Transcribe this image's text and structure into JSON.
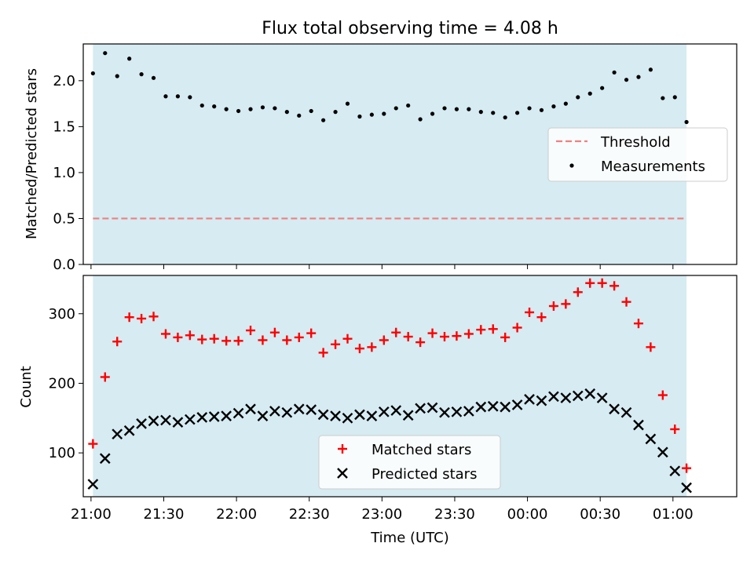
{
  "chart_data": [
    {
      "type": "scatter",
      "title": "Flux total observing time = 4.08 h",
      "xlabel": "",
      "ylabel": "Matched/Predicted stars",
      "xlim": [
        -3.2,
        266.3
      ],
      "ylim": [
        0.0,
        2.4
      ],
      "yticks": [
        0.0,
        0.5,
        1.0,
        1.5,
        2.0
      ],
      "ytick_labels": [
        "0.0",
        "0.5",
        "1.0",
        "1.5",
        "2.0"
      ],
      "shaded_span": [
        0.8,
        245.6
      ],
      "shade_color": "#add8e6",
      "threshold": 0.5,
      "legend_position": "center-right",
      "series": [
        {
          "name": "Threshold",
          "kind": "dashed-line",
          "color": "#f08080"
        },
        {
          "name": "Measurements",
          "kind": "dots",
          "color": "#000000",
          "x": [
            0.8,
            5.8,
            10.8,
            15.8,
            20.8,
            25.8,
            30.8,
            35.8,
            40.8,
            45.8,
            50.8,
            55.8,
            60.8,
            65.8,
            70.8,
            75.8,
            80.8,
            85.8,
            90.8,
            95.8,
            100.8,
            105.8,
            110.8,
            115.8,
            120.8,
            125.8,
            130.8,
            135.8,
            140.8,
            145.8,
            150.8,
            155.8,
            160.8,
            165.8,
            170.8,
            175.8,
            180.8,
            185.8,
            190.8,
            195.8,
            200.8,
            205.8,
            210.8,
            215.8,
            220.8,
            225.8,
            230.8,
            235.8,
            240.8,
            245.6
          ],
          "y": [
            2.08,
            2.3,
            2.05,
            2.24,
            2.07,
            2.03,
            1.83,
            1.83,
            1.82,
            1.73,
            1.72,
            1.69,
            1.67,
            1.69,
            1.71,
            1.7,
            1.66,
            1.62,
            1.67,
            1.57,
            1.66,
            1.75,
            1.61,
            1.63,
            1.64,
            1.7,
            1.73,
            1.58,
            1.64,
            1.7,
            1.69,
            1.69,
            1.66,
            1.65,
            1.6,
            1.65,
            1.7,
            1.68,
            1.72,
            1.75,
            1.82,
            1.86,
            1.92,
            2.09,
            2.01,
            2.04,
            2.12,
            1.81,
            1.82,
            1.55
          ]
        }
      ]
    },
    {
      "type": "scatter",
      "title": "",
      "xlabel": "Time (UTC)",
      "ylabel": "Count",
      "xlim": [
        -3.2,
        266.3
      ],
      "ylim": [
        37,
        355
      ],
      "yticks": [
        100,
        200,
        300
      ],
      "ytick_labels": [
        "100",
        "200",
        "300"
      ],
      "xticks": [
        0,
        30,
        60,
        90,
        120,
        150,
        180,
        210,
        240
      ],
      "xtick_labels": [
        "21:00",
        "21:30",
        "22:00",
        "22:30",
        "23:00",
        "23:30",
        "00:00",
        "00:30",
        "01:00"
      ],
      "shaded_span": [
        0.8,
        245.6
      ],
      "shade_color": "#add8e6",
      "legend_position": "bottom-center",
      "series": [
        {
          "name": "Matched stars",
          "kind": "plus",
          "color": "#ff0000",
          "x": [
            0.8,
            5.8,
            10.8,
            15.8,
            20.8,
            25.8,
            30.8,
            35.8,
            40.8,
            45.8,
            50.8,
            55.8,
            60.8,
            65.8,
            70.8,
            75.8,
            80.8,
            85.8,
            90.8,
            95.8,
            100.8,
            105.8,
            110.8,
            115.8,
            120.8,
            125.8,
            130.8,
            135.8,
            140.8,
            145.8,
            150.8,
            155.8,
            160.8,
            165.8,
            170.8,
            175.8,
            180.8,
            185.8,
            190.8,
            195.8,
            200.8,
            205.8,
            210.8,
            215.8,
            220.8,
            225.8,
            230.8,
            235.8,
            240.8,
            245.6
          ],
          "y": [
            113,
            209,
            260,
            295,
            293,
            296,
            271,
            266,
            269,
            263,
            264,
            261,
            261,
            276,
            262,
            273,
            262,
            266,
            272,
            244,
            256,
            264,
            250,
            252,
            262,
            273,
            267,
            259,
            272,
            267,
            268,
            271,
            277,
            278,
            266,
            280,
            302,
            295,
            311,
            314,
            331,
            344,
            344,
            340,
            317,
            286,
            252,
            183,
            134,
            78
          ]
        },
        {
          "name": "Predicted stars",
          "kind": "x",
          "color": "#000000",
          "x": [
            0.8,
            5.8,
            10.8,
            15.8,
            20.8,
            25.8,
            30.8,
            35.8,
            40.8,
            45.8,
            50.8,
            55.8,
            60.8,
            65.8,
            70.8,
            75.8,
            80.8,
            85.8,
            90.8,
            95.8,
            100.8,
            105.8,
            110.8,
            115.8,
            120.8,
            125.8,
            130.8,
            135.8,
            140.8,
            145.8,
            150.8,
            155.8,
            160.8,
            165.8,
            170.8,
            175.8,
            180.8,
            185.8,
            190.8,
            195.8,
            200.8,
            205.8,
            210.8,
            215.8,
            220.8,
            225.8,
            230.8,
            235.8,
            240.8,
            245.6
          ],
          "y": [
            55,
            92,
            127,
            132,
            142,
            146,
            147,
            144,
            148,
            151,
            152,
            153,
            157,
            163,
            153,
            160,
            158,
            163,
            162,
            155,
            153,
            150,
            155,
            153,
            159,
            161,
            154,
            164,
            165,
            158,
            159,
            160,
            166,
            167,
            166,
            169,
            177,
            175,
            181,
            179,
            182,
            185,
            179,
            163,
            158,
            140,
            120,
            101,
            74,
            50
          ]
        }
      ]
    }
  ]
}
